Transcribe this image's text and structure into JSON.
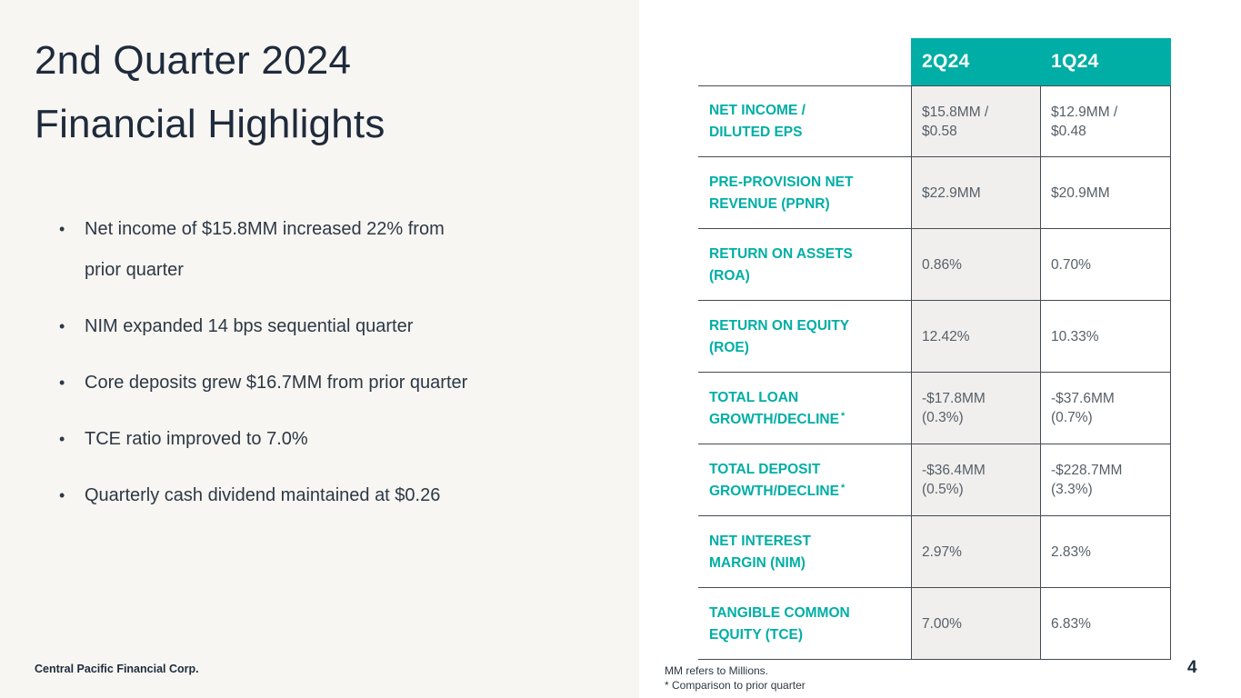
{
  "colors": {
    "teal": "#00AEA5",
    "navy": "#1E2B3C",
    "left_bg": "#F8F6F2",
    "col_gray": "#F0EFEE"
  },
  "slide": {
    "title_line1": "2nd Quarter 2024",
    "title_line2": "Financial Highlights",
    "bullet_char": "•",
    "bullets": [
      "Net income of $15.8MM increased 22% from\nprior quarter",
      "NIM expanded 14 bps sequential quarter",
      "Core deposits grew $16.7MM from prior quarter",
      "TCE ratio improved to 7.0%",
      "Quarterly cash dividend maintained at $0.26"
    ],
    "footer_left": "Central Pacific Financial Corp.",
    "page_number": "4"
  },
  "table": {
    "col_headers": [
      "2Q24",
      "1Q24"
    ],
    "rows": [
      {
        "label": "NET INCOME /\nDILUTED EPS",
        "sup": "",
        "q2": "$15.8MM /\n$0.58",
        "q1": "$12.9MM /\n$0.48"
      },
      {
        "label": "PRE-PROVISION NET\nREVENUE (PPNR)",
        "sup": "",
        "q2": "$22.9MM",
        "q1": "$20.9MM"
      },
      {
        "label": "RETURN ON ASSETS\n(ROA)",
        "sup": "",
        "q2": "0.86%",
        "q1": "0.70%"
      },
      {
        "label": "RETURN ON EQUITY\n(ROE)",
        "sup": "",
        "q2": "12.42%",
        "q1": "10.33%"
      },
      {
        "label": "TOTAL LOAN\nGROWTH/DECLINE",
        "sup": "*",
        "q2": "-$17.8MM\n(0.3%)",
        "q1": "-$37.6MM\n(0.7%)"
      },
      {
        "label": "TOTAL DEPOSIT\nGROWTH/DECLINE",
        "sup": "*",
        "q2": "-$36.4MM\n(0.5%)",
        "q1": "-$228.7MM\n(3.3%)"
      },
      {
        "label": "NET INTEREST\nMARGIN (NIM)",
        "sup": "",
        "q2": "2.97%",
        "q1": "2.83%"
      },
      {
        "label": "TANGIBLE COMMON\nEQUITY (TCE)",
        "sup": "",
        "q2": "7.00%",
        "q1": "6.83%"
      }
    ],
    "footnotes": [
      "MM refers to Millions.",
      "* Comparison to prior quarter"
    ]
  }
}
